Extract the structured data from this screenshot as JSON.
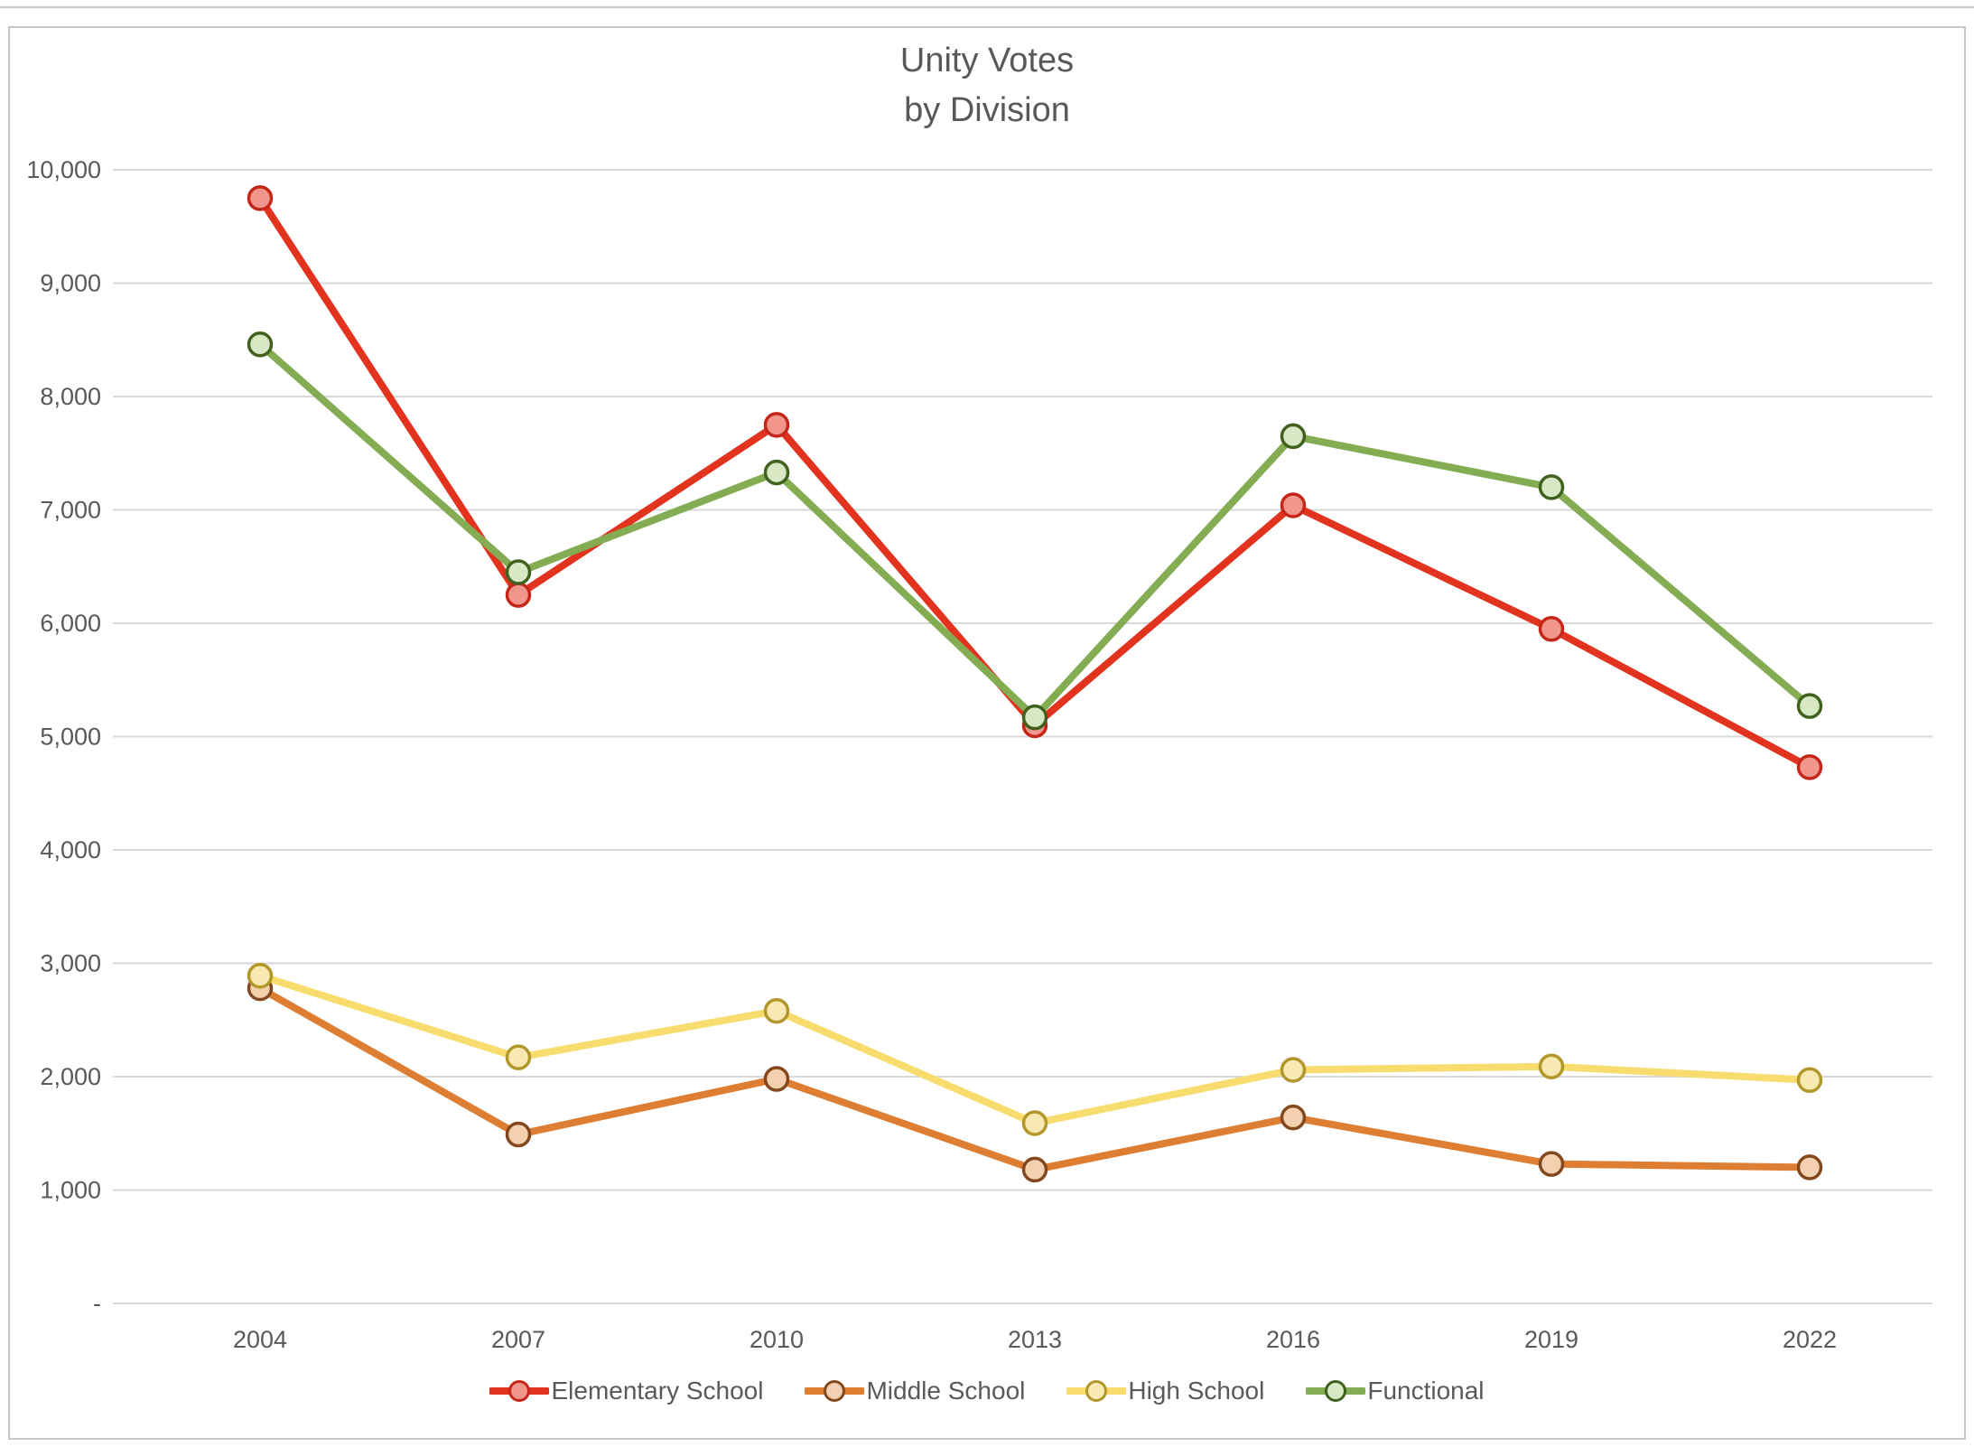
{
  "chart_data": {
    "type": "line",
    "title_line1": "Unity Votes",
    "title_line2": "by Division",
    "categories": [
      "2004",
      "2007",
      "2010",
      "2013",
      "2016",
      "2019",
      "2022"
    ],
    "series": [
      {
        "name": "Elementary School",
        "values": [
          9750,
          6250,
          7750,
          5100,
          7040,
          5950,
          4730
        ],
        "line_color": "#e2331f",
        "marker_fill": "#f0968d",
        "marker_stroke": "#c52619"
      },
      {
        "name": "Middle School",
        "values": [
          2780,
          1490,
          1980,
          1180,
          1640,
          1230,
          1200
        ],
        "line_color": "#dd7e33",
        "marker_fill": "#f3d1b0",
        "marker_stroke": "#84481e"
      },
      {
        "name": "High School",
        "values": [
          2890,
          2170,
          2580,
          1590,
          2060,
          2090,
          1970
        ],
        "line_color": "#f8dc6d",
        "marker_fill": "#f8e9b3",
        "marker_stroke": "#b2972a"
      },
      {
        "name": "Functional",
        "values": [
          8460,
          6450,
          7330,
          5170,
          7650,
          7200,
          5270
        ],
        "line_color": "#84ad53",
        "marker_fill": "#d8e8c5",
        "marker_stroke": "#41611f"
      }
    ],
    "ylim": [
      0,
      10000
    ],
    "ytick_step": 1000,
    "ytick_labels": [
      "-",
      "1,000",
      "2,000",
      "3,000",
      "4,000",
      "5,000",
      "6,000",
      "7,000",
      "8,000",
      "9,000",
      "10,000"
    ],
    "grid": true,
    "legend_position": "bottom"
  },
  "colors": {
    "grid_line": "#d9d9d9",
    "axis_text": "#595959",
    "frame_border": "#c8c8c8",
    "background": "#ffffff"
  }
}
